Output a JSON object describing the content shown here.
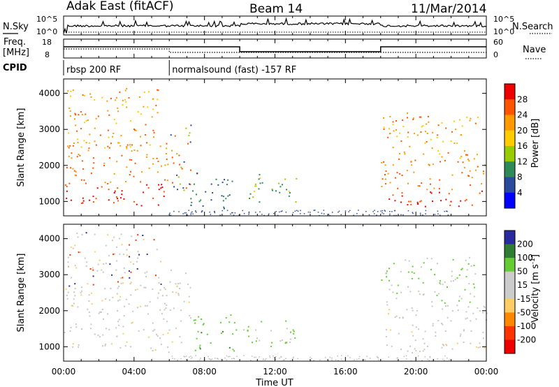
{
  "header": {
    "station": "Adak East (fitACF)",
    "beam": "Beam 14",
    "date": "11/Mar/2014"
  },
  "nsky_panel": {
    "left_label": "N.Sky",
    "right_label": "N.Search",
    "left_ticks": [
      "10^5",
      "10^0"
    ],
    "right_ticks": [
      "10^5",
      "10^0"
    ]
  },
  "freq_panel": {
    "left_label_1": "Freq.",
    "left_label_2": "[MHz]",
    "right_label": "Nave",
    "left_ticks": [
      "18",
      "8"
    ],
    "right_ticks": [
      "60",
      "0"
    ]
  },
  "cpid": {
    "label": "CPID",
    "segments": [
      {
        "start_hour": 0,
        "text": "rbsp 200 RF"
      },
      {
        "start_hour": 6,
        "text": "normalsound (fast) -157 RF"
      }
    ]
  },
  "x_axis": {
    "label": "Time UT",
    "tick_labels": [
      "00:00",
      "04:00",
      "08:00",
      "12:00",
      "16:00",
      "20:00",
      "00:00"
    ],
    "tick_hours": [
      0,
      4,
      8,
      12,
      16,
      20,
      24
    ]
  },
  "chart_data": [
    {
      "type": "heatmap",
      "title": "",
      "ylabel": "Slant Range [km]",
      "xlabel": "Time UT",
      "xlim_hours": [
        0,
        24
      ],
      "ylim_km": [
        600,
        4400
      ],
      "y_tick_labels": [
        "1000",
        "2000",
        "3000",
        "4000"
      ],
      "y_ticks": [
        1000,
        2000,
        3000,
        4000
      ],
      "colorbar": {
        "label": "Power [dB]",
        "tick_labels": [
          "28",
          "24",
          "20",
          "16",
          "12",
          "8",
          "4"
        ],
        "colors": [
          "#ee0000",
          "#ff5500",
          "#ff9900",
          "#ffcc00",
          "#99cc00",
          "#2e8b57",
          "#2a4a9e",
          "#0000ff"
        ]
      },
      "regions": [
        {
          "t0": 0.0,
          "t1": 6.0,
          "r0": 900,
          "r1": 2700,
          "level": "strong"
        },
        {
          "t0": 0.2,
          "t1": 5.5,
          "r0": 2500,
          "r1": 4200,
          "level": "medium"
        },
        {
          "t0": 6.0,
          "t1": 7.2,
          "r0": 1100,
          "r1": 3200,
          "level": "mixed"
        },
        {
          "t0": 7.0,
          "t1": 9.8,
          "r0": 800,
          "r1": 1800,
          "level": "weak"
        },
        {
          "t0": 10.0,
          "t1": 13.2,
          "r0": 1000,
          "r1": 1800,
          "level": "weak-mid"
        },
        {
          "t0": 18.0,
          "t1": 24.0,
          "r0": 850,
          "r1": 2200,
          "level": "strong"
        },
        {
          "t0": 18.0,
          "t1": 23.5,
          "r0": 2200,
          "r1": 3500,
          "level": "medium"
        }
      ]
    },
    {
      "type": "heatmap",
      "title": "",
      "ylabel": "Slant Range [km]",
      "xlabel": "Time UT",
      "xlim_hours": [
        0,
        24
      ],
      "ylim_km": [
        600,
        4400
      ],
      "y_tick_labels": [
        "1000",
        "2000",
        "3000",
        "4000"
      ],
      "y_ticks": [
        1000,
        2000,
        3000,
        4000
      ],
      "colorbar": {
        "label": "Velocity [m s^-1]",
        "tick_labels": [
          "200",
          "100",
          "50",
          "15",
          "-15",
          "-50",
          "-100",
          "-200"
        ],
        "colors": [
          "#2a2aa0",
          "#2e7d32",
          "#66cc33",
          "#cccccc",
          "#cccccc",
          "#ffcc66",
          "#ff8800",
          "#ff3300",
          "#ee0000"
        ]
      },
      "regions": [
        {
          "t0": 0.0,
          "t1": 6.0,
          "r0": 850,
          "r1": 2700,
          "level": "ground"
        },
        {
          "t0": 0.2,
          "t1": 5.5,
          "r0": 2500,
          "r1": 4200,
          "level": "ground-sparse"
        },
        {
          "t0": 6.0,
          "t1": 7.2,
          "r0": 1100,
          "r1": 3200,
          "level": "ground"
        },
        {
          "t0": 7.3,
          "t1": 9.8,
          "r0": 900,
          "r1": 1900,
          "level": "green"
        },
        {
          "t0": 10.0,
          "t1": 13.2,
          "r0": 1000,
          "r1": 1800,
          "level": "green-grey"
        },
        {
          "t0": 18.0,
          "t1": 24.0,
          "r0": 850,
          "r1": 2200,
          "level": "ground"
        },
        {
          "t0": 18.0,
          "t1": 23.5,
          "r0": 2200,
          "r1": 3500,
          "level": "green-grey"
        }
      ]
    }
  ],
  "colors": {
    "axis": "#000000",
    "background": "#ffffff"
  }
}
